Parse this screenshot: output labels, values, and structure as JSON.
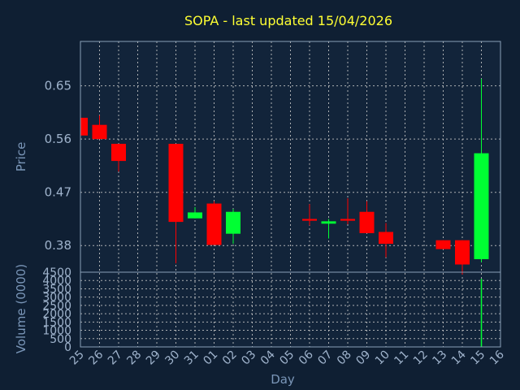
{
  "chart_data": [
    {
      "type": "candlestick",
      "title": "SOPA - last updated 15/04/2026",
      "ylabel": "Price",
      "ylim": [
        0.335,
        0.725
      ],
      "yticks": [
        "0.65",
        "0.56",
        "0.47",
        "0.38"
      ],
      "ytick_values": [
        0.65,
        0.56,
        0.47,
        0.38
      ],
      "grid": true,
      "colors": {
        "up": "#00ff33",
        "down": "#ff0000",
        "background": "#0f1f33",
        "plot_background": "#12243a",
        "title": "#ffff33"
      },
      "candles": [
        {
          "day": "25",
          "open": 0.596,
          "high": 0.596,
          "low": 0.566,
          "close": 0.566
        },
        {
          "day": "26",
          "open": 0.584,
          "high": 0.6,
          "low": 0.56,
          "close": 0.56
        },
        {
          "day": "27",
          "open": 0.552,
          "high": 0.552,
          "low": 0.505,
          "close": 0.523
        },
        {
          "day": "30",
          "open": 0.552,
          "high": 0.552,
          "low": 0.35,
          "close": 0.42
        },
        {
          "day": "31",
          "open": 0.426,
          "high": 0.445,
          "low": 0.426,
          "close": 0.436
        },
        {
          "day": "01",
          "open": 0.451,
          "high": 0.455,
          "low": 0.381,
          "close": 0.381
        },
        {
          "day": "02",
          "open": 0.4,
          "high": 0.442,
          "low": 0.383,
          "close": 0.437
        },
        {
          "day": "06",
          "open": 0.425,
          "high": 0.45,
          "low": 0.414,
          "close": 0.422
        },
        {
          "day": "07",
          "open": 0.417,
          "high": 0.425,
          "low": 0.392,
          "close": 0.421
        },
        {
          "day": "08",
          "open": 0.425,
          "high": 0.46,
          "low": 0.416,
          "close": 0.422
        },
        {
          "day": "09",
          "open": 0.437,
          "high": 0.455,
          "low": 0.401,
          "close": 0.401
        },
        {
          "day": "10",
          "open": 0.403,
          "high": 0.418,
          "low": 0.36,
          "close": 0.383
        },
        {
          "day": "13",
          "open": 0.389,
          "high": 0.389,
          "low": 0.374,
          "close": 0.374
        },
        {
          "day": "14",
          "open": 0.389,
          "high": 0.389,
          "low": 0.331,
          "close": 0.348
        },
        {
          "day": "15",
          "open": 0.357,
          "high": 0.662,
          "low": 0.352,
          "close": 0.536
        }
      ]
    },
    {
      "type": "bar",
      "ylabel": "Volume (0000)",
      "ylim": [
        0,
        4500
      ],
      "yticks": [
        "4500",
        "4000",
        "3500",
        "3000",
        "2500",
        "2000",
        "1500",
        "1000",
        "500",
        "0"
      ],
      "ytick_values": [
        4500,
        4000,
        3500,
        3000,
        2500,
        2000,
        1500,
        1000,
        500,
        0
      ],
      "xlabel": "Day",
      "categories": [
        "25",
        "26",
        "27",
        "28",
        "29",
        "30",
        "31",
        "01",
        "02",
        "03",
        "04",
        "05",
        "06",
        "07",
        "08",
        "09",
        "10",
        "11",
        "12",
        "13",
        "14",
        "15",
        "16"
      ],
      "values": [
        0,
        0,
        0,
        0,
        0,
        0,
        0,
        0,
        0,
        0,
        0,
        0,
        0,
        0,
        0,
        0,
        0,
        0,
        0,
        0,
        0,
        4100,
        0
      ],
      "bar_color": "#00ff33"
    }
  ]
}
